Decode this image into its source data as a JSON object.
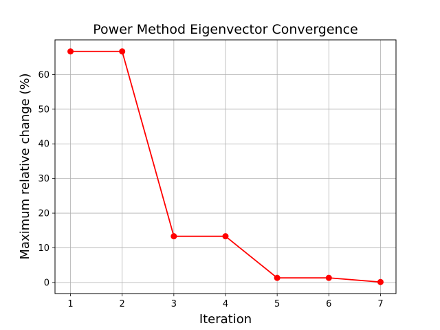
{
  "chart_data": {
    "type": "line",
    "title": "Power Method Eigenvector Convergence",
    "xlabel": "Iteration",
    "ylabel": "Maximum relative change (%)",
    "x": [
      1,
      2,
      3,
      4,
      5,
      6,
      7
    ],
    "series": [
      {
        "values": [
          66.67,
          66.67,
          13.33,
          13.33,
          1.33,
          1.33,
          0.13
        ],
        "color": "#ff0000",
        "marker": "circle"
      }
    ],
    "xlim": [
      0.7,
      7.3
    ],
    "ylim": [
      -3.2,
      70.0
    ],
    "xticks": [
      "1",
      "2",
      "3",
      "4",
      "5",
      "6",
      "7"
    ],
    "yticks": [
      "0",
      "10",
      "20",
      "30",
      "40",
      "50",
      "60"
    ],
    "grid": true
  }
}
